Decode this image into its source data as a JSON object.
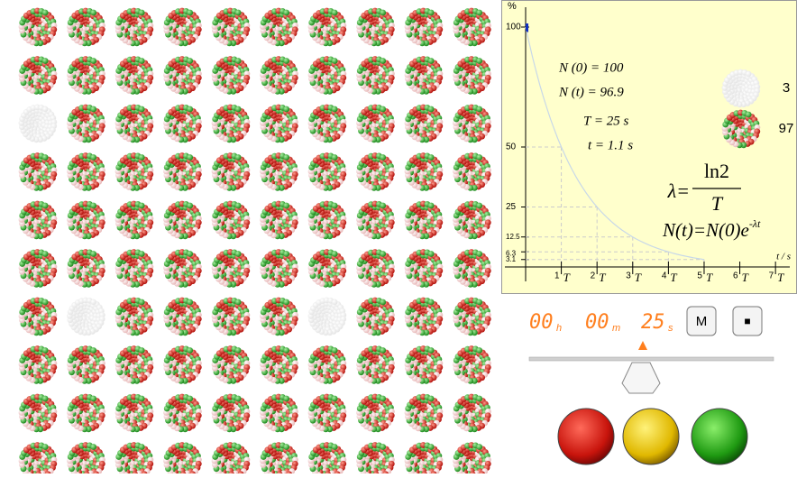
{
  "nuclei": {
    "rows": 10,
    "cols": 10,
    "decayed": [
      [
        2,
        0
      ],
      [
        6,
        1
      ],
      [
        6,
        6
      ]
    ]
  },
  "graph": {
    "y_label": "%",
    "x_label": "t / s",
    "ylim": [
      0,
      100
    ],
    "yticks": [
      100,
      50,
      25,
      12.5,
      6.3,
      3.1
    ],
    "xlim": [
      0,
      7.4
    ],
    "xticks": [
      1,
      2,
      3,
      4,
      5,
      6,
      7
    ],
    "x_unit": "T"
  },
  "readouts": [
    "N (0) = 100",
    "N (t) = 96.9",
    "T = 25 s",
    "t = 1.1 s"
  ],
  "counts": {
    "decayed": 3,
    "remaining": 97
  },
  "formula_lambda": {
    "lhs": "λ=",
    "numerator": "ln2",
    "denominator": "T"
  },
  "formula_decay": {
    "base": "N(t)=N(0)e",
    "exponent": "-λt"
  },
  "timer": [
    {
      "digits": "00",
      "unit": "h"
    },
    {
      "digits": "00",
      "unit": "m"
    },
    {
      "digits": "25",
      "unit": "s"
    }
  ],
  "buttons": [
    "M",
    "■"
  ]
}
